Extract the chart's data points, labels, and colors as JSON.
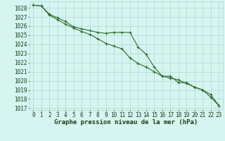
{
  "title": "Graphe pression niveau de la mer (hPa)",
  "xlabel_hours": [
    0,
    1,
    2,
    3,
    4,
    5,
    6,
    7,
    8,
    9,
    10,
    11,
    12,
    13,
    14,
    15,
    16,
    17,
    18,
    19,
    20,
    21,
    22,
    23
  ],
  "series1": [
    1028.3,
    1028.2,
    1027.3,
    1026.9,
    1026.5,
    1025.9,
    1025.7,
    1025.5,
    1025.3,
    1025.2,
    1025.3,
    1025.3,
    1025.3,
    1023.7,
    1022.9,
    1021.5,
    1020.5,
    1020.5,
    1019.8,
    1019.8,
    1019.3,
    1019.0,
    1018.2,
    1017.3
  ],
  "series2": [
    1028.3,
    1028.2,
    1027.2,
    1026.7,
    1026.2,
    1025.8,
    1025.4,
    1025.1,
    1024.6,
    1024.1,
    1023.8,
    1023.5,
    1022.5,
    1021.9,
    1021.5,
    1021.0,
    1020.5,
    1020.3,
    1020.1,
    1019.7,
    1019.3,
    1019.0,
    1018.5,
    1017.3
  ],
  "ylim_min": 1016.8,
  "ylim_max": 1028.7,
  "yticks": [
    1017,
    1018,
    1019,
    1020,
    1021,
    1022,
    1023,
    1024,
    1025,
    1026,
    1027,
    1028
  ],
  "line_color": "#2d6a2d",
  "marker_color": "#2d6a2d",
  "bg_color": "#d6f5f0",
  "grid_color": "#aad8d0",
  "title_color": "#1a3a1a",
  "tick_color": "#1a3a1a",
  "title_fontsize": 6.5,
  "tick_fontsize": 5.5
}
